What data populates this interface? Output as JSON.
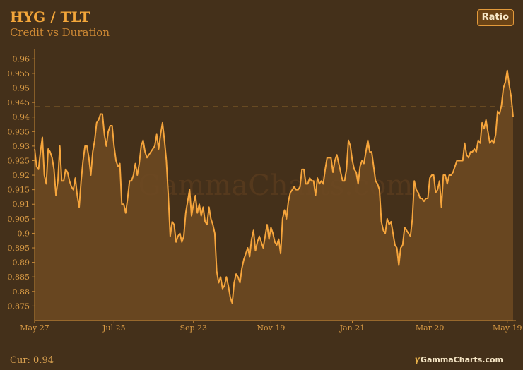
{
  "header": {
    "title": "HYG / TLT",
    "subtitle": "Credit vs Duration",
    "mode_button_label": "Ratio"
  },
  "footer": {
    "current_label": "Cur: 0.94",
    "brand_mark": "𝛾",
    "brand_text": "GammaCharts.com"
  },
  "watermark": "GammaCharts.com",
  "colors": {
    "background": "#44301a",
    "line": "#f6a53c",
    "area_fill": "#6e4a22",
    "axis": "#c98a37",
    "tick_label": "#d89a45",
    "ref_line": "#a2742f",
    "watermark": "#55391d"
  },
  "chart_data": {
    "type": "area",
    "title": "HYG / TLT",
    "subtitle": "Credit vs Duration",
    "xlabel": "",
    "ylabel": "",
    "ylim": [
      0.87,
      0.9625
    ],
    "y_ticks": [
      0.875,
      0.88,
      0.885,
      0.89,
      0.895,
      0.9,
      0.905,
      0.91,
      0.915,
      0.92,
      0.925,
      0.93,
      0.935,
      0.94,
      0.945,
      0.95,
      0.955,
      0.96
    ],
    "x_tick_labels": [
      "May 27",
      "Jul 25",
      "Sep 23",
      "Nov 19",
      "Jan 21",
      "Mar 20",
      "May 19"
    ],
    "x_tick_index": [
      0,
      41,
      82,
      122,
      164,
      204,
      244
    ],
    "reference_line": 0.9435,
    "grid": false,
    "legend": "none",
    "current_value": 0.94,
    "series": [
      {
        "values": [
          0.929,
          0.923,
          0.922,
          0.928,
          0.933,
          0.92,
          0.917,
          0.929,
          0.928,
          0.926,
          0.922,
          0.913,
          0.918,
          0.93,
          0.918,
          0.918,
          0.922,
          0.921,
          0.918,
          0.916,
          0.915,
          0.919,
          0.913,
          0.909,
          0.918,
          0.925,
          0.93,
          0.93,
          0.926,
          0.92,
          0.928,
          0.932,
          0.938,
          0.939,
          0.941,
          0.941,
          0.934,
          0.93,
          0.935,
          0.937,
          0.937,
          0.93,
          0.925,
          0.923,
          0.924,
          0.91,
          0.91,
          0.907,
          0.912,
          0.918,
          0.918,
          0.92,
          0.924,
          0.92,
          0.924,
          0.93,
          0.932,
          0.928,
          0.926,
          0.927,
          0.928,
          0.929,
          0.93,
          0.934,
          0.929,
          0.934,
          0.938,
          0.932,
          0.925,
          0.913,
          0.899,
          0.904,
          0.903,
          0.897,
          0.899,
          0.9,
          0.897,
          0.899,
          0.907,
          0.911,
          0.915,
          0.906,
          0.91,
          0.913,
          0.907,
          0.91,
          0.906,
          0.909,
          0.904,
          0.903,
          0.909,
          0.905,
          0.903,
          0.9,
          0.887,
          0.883,
          0.885,
          0.881,
          0.882,
          0.885,
          0.882,
          0.878,
          0.876,
          0.883,
          0.886,
          0.885,
          0.883,
          0.888,
          0.891,
          0.893,
          0.895,
          0.892,
          0.898,
          0.901,
          0.894,
          0.897,
          0.899,
          0.897,
          0.895,
          0.899,
          0.903,
          0.898,
          0.902,
          0.9,
          0.897,
          0.896,
          0.898,
          0.893,
          0.905,
          0.908,
          0.905,
          0.911,
          0.914,
          0.915,
          0.916,
          0.915,
          0.915,
          0.916,
          0.922,
          0.922,
          0.917,
          0.917,
          0.919,
          0.918,
          0.918,
          0.913,
          0.919,
          0.917,
          0.918,
          0.917,
          0.922,
          0.926,
          0.926,
          0.926,
          0.921,
          0.925,
          0.927,
          0.924,
          0.921,
          0.918,
          0.918,
          0.922,
          0.932,
          0.93,
          0.925,
          0.922,
          0.921,
          0.917,
          0.923,
          0.925,
          0.924,
          0.928,
          0.932,
          0.928,
          0.928,
          0.923,
          0.918,
          0.917,
          0.915,
          0.904,
          0.901,
          0.9,
          0.905,
          0.903,
          0.904,
          0.9,
          0.896,
          0.895,
          0.889,
          0.895,
          0.896,
          0.902,
          0.901,
          0.9,
          0.899,
          0.905,
          0.918,
          0.915,
          0.914,
          0.912,
          0.912,
          0.911,
          0.912,
          0.912,
          0.919,
          0.92,
          0.92,
          0.914,
          0.915,
          0.918,
          0.909,
          0.92,
          0.92,
          0.917,
          0.92,
          0.92,
          0.921,
          0.923,
          0.925,
          0.925,
          0.925,
          0.925,
          0.931,
          0.927,
          0.926,
          0.928,
          0.928,
          0.929,
          0.928,
          0.932,
          0.931,
          0.938,
          0.936,
          0.939,
          0.935,
          0.931,
          0.932,
          0.931,
          0.934,
          0.942,
          0.941,
          0.944,
          0.95,
          0.952,
          0.956,
          0.951,
          0.947,
          0.94
        ]
      }
    ]
  }
}
